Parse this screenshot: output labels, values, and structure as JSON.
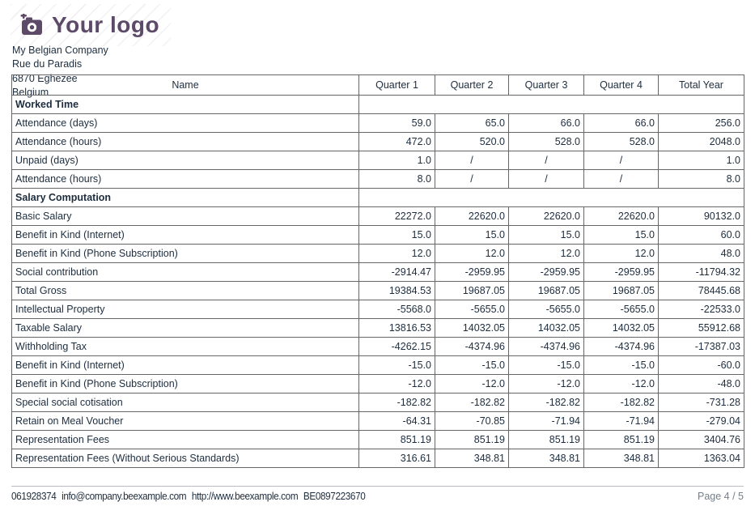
{
  "logo": {
    "text": "Your logo",
    "icon": "camera-plus-icon",
    "color": "#5d4a68"
  },
  "company": {
    "lines": [
      "My Belgian Company",
      "Rue du Paradis",
      "6870 Eghezee",
      "Belgium"
    ]
  },
  "table": {
    "columns": [
      "Name",
      "Quarter 1",
      "Quarter 2",
      "Quarter 3",
      "Quarter 4",
      "Total Year"
    ],
    "sections": [
      {
        "title": "Worked Time",
        "rows": [
          {
            "label": "Attendance (days)",
            "values": [
              "59.0",
              "65.0",
              "66.0",
              "66.0",
              "256.0"
            ]
          },
          {
            "label": "Attendance (hours)",
            "values": [
              "472.0",
              "520.0",
              "528.0",
              "528.0",
              "2048.0"
            ]
          },
          {
            "label": "Unpaid (days)",
            "values": [
              "1.0",
              "/",
              "/",
              "/",
              "1.0"
            ]
          },
          {
            "label": "Attendance (hours)",
            "values": [
              "8.0",
              "/",
              "/",
              "/",
              "8.0"
            ]
          }
        ]
      },
      {
        "title": "Salary Computation",
        "rows": [
          {
            "label": "Basic Salary",
            "values": [
              "22272.0",
              "22620.0",
              "22620.0",
              "22620.0",
              "90132.0"
            ]
          },
          {
            "label": "Benefit in Kind (Internet)",
            "values": [
              "15.0",
              "15.0",
              "15.0",
              "15.0",
              "60.0"
            ]
          },
          {
            "label": "Benefit in Kind (Phone Subscription)",
            "values": [
              "12.0",
              "12.0",
              "12.0",
              "12.0",
              "48.0"
            ]
          },
          {
            "label": "Social contribution",
            "values": [
              "-2914.47",
              "-2959.95",
              "-2959.95",
              "-2959.95",
              "-11794.32"
            ]
          },
          {
            "label": "Total Gross",
            "values": [
              "19384.53",
              "19687.05",
              "19687.05",
              "19687.05",
              "78445.68"
            ]
          },
          {
            "label": "Intellectual Property",
            "values": [
              "-5568.0",
              "-5655.0",
              "-5655.0",
              "-5655.0",
              "-22533.0"
            ]
          },
          {
            "label": "Taxable Salary",
            "values": [
              "13816.53",
              "14032.05",
              "14032.05",
              "14032.05",
              "55912.68"
            ]
          },
          {
            "label": "Withholding Tax",
            "values": [
              "-4262.15",
              "-4374.96",
              "-4374.96",
              "-4374.96",
              "-17387.03"
            ]
          },
          {
            "label": "Benefit in Kind (Internet)",
            "values": [
              "-15.0",
              "-15.0",
              "-15.0",
              "-15.0",
              "-60.0"
            ]
          },
          {
            "label": "Benefit in Kind (Phone Subscription)",
            "values": [
              "-12.0",
              "-12.0",
              "-12.0",
              "-12.0",
              "-48.0"
            ]
          },
          {
            "label": "Special social cotisation",
            "values": [
              "-182.82",
              "-182.82",
              "-182.82",
              "-182.82",
              "-731.28"
            ]
          },
          {
            "label": "Retain on Meal Voucher",
            "values": [
              "-64.31",
              "-70.85",
              "-71.94",
              "-71.94",
              "-279.04"
            ]
          },
          {
            "label": "Representation Fees",
            "values": [
              "851.19",
              "851.19",
              "851.19",
              "851.19",
              "3404.76"
            ]
          },
          {
            "label": "Representation Fees (Without Serious Standards)",
            "values": [
              "316.61",
              "348.81",
              "348.81",
              "348.81",
              "1363.04"
            ]
          }
        ]
      }
    ]
  },
  "footer": {
    "phone": "061928374",
    "email": "info@company.beexample.com",
    "website": "http://www.beexample.com",
    "vat": "BE0897223670",
    "page": "Page 4 / 5"
  }
}
